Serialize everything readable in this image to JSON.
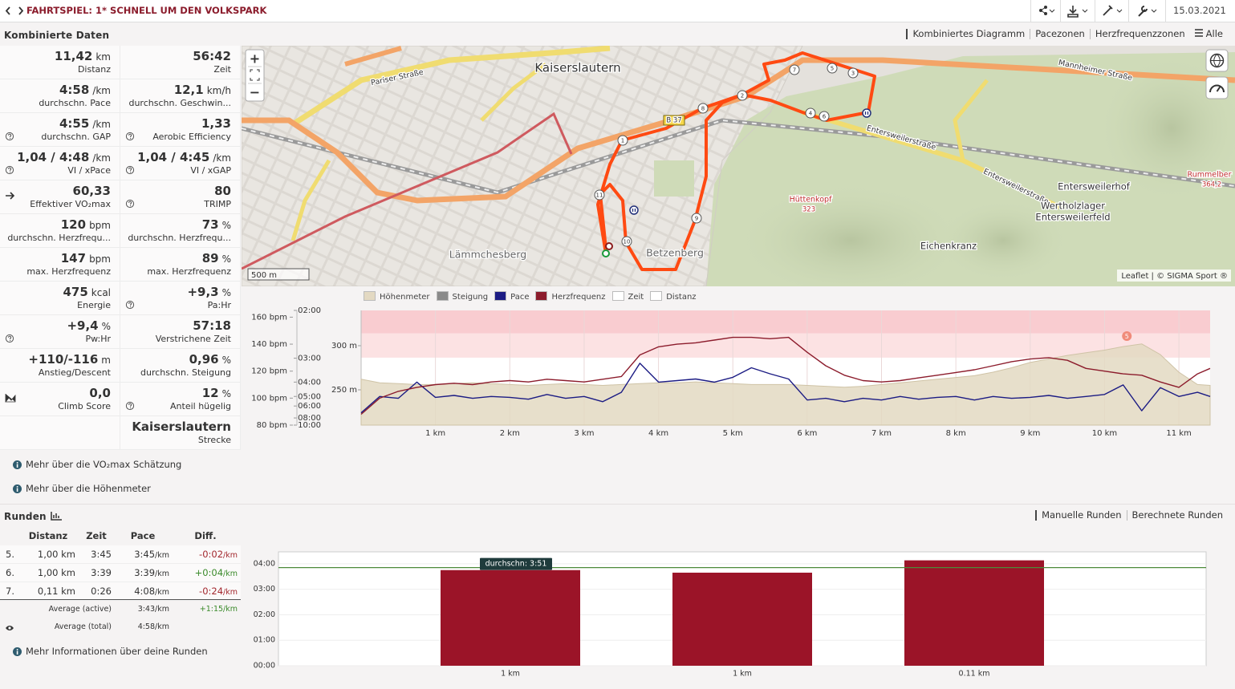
{
  "header": {
    "title": "FAHRTSPIEL: 1* SCHNELL UM DEN VOLKSPARK",
    "date": "15.03.2021"
  },
  "stats": {
    "title": "Kombinierte Daten",
    "rows": [
      [
        {
          "value": "11,42",
          "unit": "km",
          "label": "Distanz"
        },
        {
          "value": "56:42",
          "label": "Zeit"
        }
      ],
      [
        {
          "value": "4:58",
          "unit": "/km",
          "label": "durchschn. Pace"
        },
        {
          "value": "12,1",
          "unit": "km/h",
          "label": "durchschn. Geschwin..."
        }
      ],
      [
        {
          "value": "4:55",
          "unit": "/km",
          "label": "durchschn. GAP",
          "icon": "help"
        },
        {
          "value": "1,33",
          "label": "Aerobic Efficiency",
          "icon": "help"
        }
      ],
      [
        {
          "value": "1,04 / 4:48",
          "unit": "/km",
          "label": "VI / xPace",
          "icon": "help"
        },
        {
          "value": "1,04 / 4:45",
          "unit": "/km",
          "label": "VI / xGAP",
          "icon": "help"
        }
      ],
      [
        {
          "value": "60,33",
          "label": "Effektiver VO₂max",
          "icon": "arrow"
        },
        {
          "value": "80",
          "label": "TRIMP",
          "icon": "help"
        }
      ],
      [
        {
          "value": "120",
          "unit": "bpm",
          "label": "durchschn. Herzfrequ..."
        },
        {
          "value": "73",
          "unit": "%",
          "label": "durchschn. Herzfrequ..."
        }
      ],
      [
        {
          "value": "147",
          "unit": "bpm",
          "label": "max. Herzfrequenz"
        },
        {
          "value": "89",
          "unit": "%",
          "label": "max. Herzfrequenz"
        }
      ],
      [
        {
          "value": "475",
          "unit": "kcal",
          "label": "Energie"
        },
        {
          "value": "+9,3",
          "unit": "%",
          "label": "Pa:Hr",
          "icon": "help"
        }
      ],
      [
        {
          "value": "+9,4",
          "unit": "%",
          "label": "Pw:Hr",
          "icon": "help"
        },
        {
          "value": "57:18",
          "label": "Verstrichene Zeit"
        }
      ],
      [
        {
          "value": "+110/-116",
          "unit": "m",
          "label": "Anstieg/Descent"
        },
        {
          "value": "0,96",
          "unit": "%",
          "label": "durchschn. Steigung"
        }
      ],
      [
        {
          "value": "0,0",
          "label": "Climb Score",
          "icon": "chart"
        },
        {
          "value": "12",
          "unit": "%",
          "label": "Anteil hügelig",
          "icon": "help"
        }
      ],
      [
        null,
        {
          "value": "Kaiserslautern",
          "label": "Strecke"
        }
      ]
    ]
  },
  "view_tabs": [
    "Kombiniertes Diagramm",
    "Pacezonen",
    "Herzfrequenzzonen",
    "Alle"
  ],
  "map": {
    "zoom_in": "+",
    "zoom_out": "−",
    "scale": "500 m",
    "attribution": "Leaflet | © SIGMA Sport ®",
    "labels": [
      "Kaiserslautern",
      "Pariser Straße",
      "Mannheimer Straße",
      "Entersweilerstraße",
      "Entersweilerstraße",
      "Hüttenkopf",
      "323",
      "Entersweilerhof",
      "Wertholzlager",
      "Entersweilerfeld",
      "Eichenkranz",
      "Lämmchesberg",
      "Betzenberg",
      "Rummelber",
      "364,2",
      "B 37"
    ],
    "route_markers": [
      "1",
      "2",
      "3",
      "4",
      "5",
      "6",
      "7",
      "8",
      "9",
      "10",
      "11"
    ]
  },
  "profile_chart": {
    "type": "line",
    "x": [
      0,
      0.25,
      0.5,
      0.75,
      1,
      1.25,
      1.5,
      1.75,
      2,
      2.25,
      2.5,
      2.75,
      3,
      3.25,
      3.5,
      3.75,
      4,
      4.25,
      4.5,
      4.75,
      5,
      5.25,
      5.5,
      5.75,
      6,
      6.25,
      6.5,
      6.75,
      7,
      7.25,
      7.5,
      7.75,
      8,
      8.25,
      8.5,
      8.75,
      9,
      9.25,
      9.5,
      9.75,
      10,
      10.25,
      10.5,
      10.75,
      11,
      11.25,
      11.42
    ],
    "series": [
      {
        "name": "Höhenmeter",
        "color": "#e3d9c2",
        "axis": "y2",
        "style": "area",
        "values": [
          262,
          258,
          257,
          256,
          256,
          257,
          258,
          257,
          256,
          255,
          256,
          257,
          256,
          255,
          256,
          257,
          258,
          258,
          259,
          258,
          257,
          256,
          256,
          256,
          255,
          254,
          253,
          254,
          256,
          258,
          260,
          262,
          264,
          266,
          270,
          275,
          281,
          285,
          289,
          292,
          295,
          299,
          302,
          290,
          270,
          256,
          255
        ]
      },
      {
        "name": "Steigung",
        "color": "#8a8a8a"
      },
      {
        "name": "Pace",
        "color": "#1c1c84",
        "axis": "y3",
        "style": "line",
        "values": [
          420,
          300,
          310,
          240,
          305,
          295,
          310,
          300,
          305,
          315,
          290,
          310,
          300,
          330,
          280,
          190,
          240,
          235,
          230,
          240,
          225,
          200,
          215,
          230,
          320,
          310,
          330,
          310,
          320,
          300,
          315,
          305,
          300,
          320,
          300,
          310,
          305,
          295,
          310,
          300,
          290,
          250,
          400,
          260,
          300,
          280,
          300
        ]
      },
      {
        "name": "Herzfrequenz",
        "color": "#8c1c2c",
        "axis": "y",
        "style": "line",
        "values": [
          88,
          100,
          105,
          108,
          110,
          111,
          110,
          112,
          113,
          112,
          114,
          113,
          112,
          114,
          116,
          132,
          138,
          140,
          141,
          143,
          145,
          145,
          144,
          145,
          134,
          124,
          117,
          113,
          112,
          113,
          115,
          117,
          119,
          121,
          124,
          127,
          129,
          130,
          128,
          122,
          120,
          118,
          117,
          112,
          108,
          118,
          122
        ]
      },
      {
        "name": "Zeit",
        "color": "#ffffff"
      },
      {
        "name": "Distanz",
        "color": "#ffffff"
      }
    ],
    "xlim": [
      0,
      11.42
    ],
    "xticks": [
      {
        "value": 1,
        "label": "1 km"
      },
      {
        "value": 2,
        "label": "2 km"
      },
      {
        "value": 3,
        "label": "3 km"
      },
      {
        "value": 4,
        "label": "4 km"
      },
      {
        "value": 5,
        "label": "5 km"
      },
      {
        "value": 6,
        "label": "6 km"
      },
      {
        "value": 7,
        "label": "7 km"
      },
      {
        "value": 8,
        "label": "8 km"
      },
      {
        "value": 9,
        "label": "9 km"
      },
      {
        "value": 10,
        "label": "10 km"
      },
      {
        "value": 11,
        "label": "11 km"
      }
    ],
    "ylim": [
      80,
      165
    ],
    "yticks": [
      {
        "value": 80,
        "label": "80 bpm"
      },
      {
        "value": 100,
        "label": "100 bpm"
      },
      {
        "value": 120,
        "label": "120 bpm"
      },
      {
        "value": 140,
        "label": "140 bpm"
      },
      {
        "value": 160,
        "label": "160 bpm"
      }
    ],
    "y2lim": [
      210,
      340
    ],
    "y2ticks": [
      {
        "value": 250,
        "label": "250 m"
      },
      {
        "value": 300,
        "label": "300 m"
      }
    ],
    "y3lim": [
      600,
      120
    ],
    "y3scale": "reciprocal",
    "y3ticks": [
      {
        "value": 120,
        "label": "02:00"
      },
      {
        "value": 180,
        "label": "03:00"
      },
      {
        "value": 240,
        "label": "04:00"
      },
      {
        "value": 300,
        "label": "05:00"
      },
      {
        "value": 360,
        "label": "06:00"
      },
      {
        "value": 480,
        "label": "08:00"
      },
      {
        "value": 600,
        "label": "10:00"
      }
    ],
    "zones": [
      {
        "from": 130,
        "to": 148,
        "color": "#fce2e3"
      },
      {
        "from": 148,
        "to": 165,
        "color": "#f9ccd0"
      }
    ],
    "markers": [
      {
        "x": 10.3,
        "label": "5"
      }
    ],
    "grid": true
  },
  "links": [
    "Mehr über die VO₂max Schätzung",
    "Mehr über die Höhenmeter"
  ],
  "laps": {
    "title": "Runden",
    "tabs": [
      "Manuelle Runden",
      "Berechnete Runden"
    ],
    "columns": [
      "Distanz",
      "Zeit",
      "Pace",
      "Diff."
    ],
    "rows": [
      {
        "n": "5.",
        "distance": "1,00 km",
        "time": "3:45",
        "pace": "3:45",
        "pace_unit": "/km",
        "diff": "-0:02",
        "diff_unit": "/km"
      },
      {
        "n": "6.",
        "distance": "1,00 km",
        "time": "3:39",
        "pace": "3:39",
        "pace_unit": "/km",
        "diff": "+0:04",
        "diff_unit": "/km"
      },
      {
        "n": "7.",
        "distance": "0,11 km",
        "time": "0:26",
        "pace": "4:08",
        "pace_unit": "/km",
        "diff": "-0:24",
        "diff_unit": "/km"
      }
    ],
    "averages": [
      {
        "label": "Average (active)",
        "pace": "3:43",
        "pace_unit": "/km",
        "diff": "+1:15",
        "diff_unit": "/km"
      },
      {
        "label": "Average (total)",
        "pace": "4:58",
        "pace_unit": "/km"
      }
    ],
    "link": "Mehr Informationen über deine Runden"
  },
  "laps_chart": {
    "type": "bar",
    "categories": [
      "1 km",
      "1 km",
      "0.11 km"
    ],
    "values": [
      225,
      219,
      248
    ],
    "color": "#9b1428",
    "ylim": [
      0,
      268
    ],
    "yticks": [
      {
        "value": 0,
        "label": "00:00"
      },
      {
        "value": 60,
        "label": "01:00"
      },
      {
        "value": 120,
        "label": "02:00"
      },
      {
        "value": 180,
        "label": "03:00"
      },
      {
        "value": 240,
        "label": "04:00"
      }
    ],
    "average": {
      "value": 231,
      "label": "durchschn: 3:51"
    },
    "grid": true
  }
}
